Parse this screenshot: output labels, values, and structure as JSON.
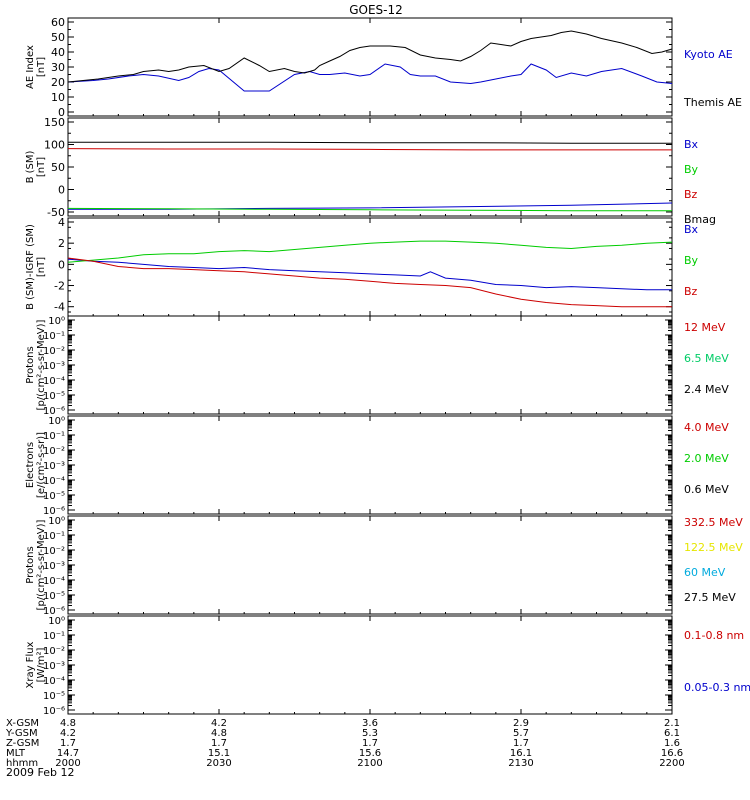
{
  "title": "GOES-12",
  "date_label": "2009 Feb 12",
  "chart_data": [
    {
      "type": "line",
      "ylabel": [
        "AE Index",
        "[nT]"
      ],
      "ylim": [
        0,
        60
      ],
      "yticks": [
        0,
        10,
        20,
        30,
        40,
        50,
        60
      ],
      "yscale": "linear",
      "xlim": [
        0,
        120
      ],
      "series": [
        {
          "name": "Kyoto AE",
          "color": "#0000cc",
          "x": [
            0,
            5,
            8,
            12,
            15,
            18,
            22,
            24,
            26,
            28,
            30,
            35,
            40,
            45,
            48,
            50,
            52,
            55,
            58,
            60,
            63,
            66,
            68,
            70,
            73,
            76,
            80,
            82,
            85,
            88,
            90,
            92,
            95,
            97,
            100,
            103,
            106,
            110,
            114,
            117,
            120
          ],
          "y": [
            20,
            21,
            22,
            24,
            25,
            24,
            21,
            23,
            27,
            29,
            28,
            14,
            14,
            25,
            27,
            25,
            25,
            26,
            24,
            25,
            32,
            30,
            25,
            24,
            24,
            20,
            19,
            20,
            22,
            24,
            25,
            32,
            28,
            23,
            26,
            24,
            27,
            29,
            24,
            20,
            19
          ]
        },
        {
          "name": "Themis AE",
          "color": "#000000",
          "x": [
            0,
            3,
            6,
            10,
            13,
            15,
            18,
            20,
            22,
            24,
            27,
            30,
            32,
            35,
            38,
            40,
            43,
            45,
            47,
            49,
            50,
            52,
            54,
            56,
            58,
            60,
            64,
            67,
            70,
            73,
            76,
            78,
            80,
            82,
            84,
            86,
            88,
            90,
            92,
            94,
            96,
            98,
            100,
            103,
            106,
            110,
            113,
            116,
            118,
            120
          ],
          "y": [
            20,
            21,
            22,
            24,
            25,
            27,
            28,
            27,
            28,
            30,
            31,
            27,
            29,
            36,
            31,
            27,
            29,
            27,
            26,
            28,
            31,
            34,
            37,
            41,
            43,
            44,
            44,
            43,
            38,
            36,
            35,
            34,
            37,
            41,
            46,
            45,
            44,
            47,
            49,
            50,
            51,
            53,
            54,
            52,
            49,
            46,
            43,
            39,
            40,
            42
          ]
        }
      ]
    },
    {
      "type": "line",
      "ylabel": [
        "B (SM)",
        "[nT]"
      ],
      "ylim": [
        -50,
        150
      ],
      "yticks": [
        -50,
        0,
        50,
        100,
        150
      ],
      "yscale": "linear",
      "xlim": [
        0,
        120
      ],
      "series": [
        {
          "name": "Bx",
          "color": "#0000cc",
          "x": [
            0,
            20,
            40,
            60,
            80,
            100,
            120
          ],
          "y": [
            -44,
            -44,
            -42,
            -41,
            -38,
            -35,
            -30
          ]
        },
        {
          "name": "By",
          "color": "#00cc00",
          "x": [
            0,
            20,
            40,
            60,
            80,
            100,
            120
          ],
          "y": [
            -42,
            -43,
            -44,
            -45,
            -46,
            -47,
            -47
          ]
        },
        {
          "name": "Bz",
          "color": "#cc0000",
          "x": [
            0,
            20,
            40,
            60,
            80,
            100,
            120
          ],
          "y": [
            91,
            90,
            90,
            89,
            88,
            88,
            88
          ]
        },
        {
          "name": "Bmag",
          "color": "#000000",
          "x": [
            0,
            20,
            40,
            60,
            80,
            100,
            120
          ],
          "y": [
            105,
            105,
            105,
            104,
            104,
            103,
            103
          ]
        }
      ]
    },
    {
      "type": "line",
      "ylabel": [
        "B (SM)-IGRF (SM)",
        "[nT]"
      ],
      "ylim": [
        -4.5,
        4
      ],
      "yticks": [
        -4,
        -2,
        0,
        2,
        4
      ],
      "yscale": "linear",
      "xlim": [
        0,
        120
      ],
      "series": [
        {
          "name": "Bx",
          "color": "#0000cc",
          "x": [
            0,
            5,
            10,
            15,
            20,
            25,
            30,
            35,
            40,
            45,
            50,
            55,
            60,
            65,
            70,
            72,
            75,
            80,
            85,
            90,
            95,
            100,
            105,
            110,
            115,
            120
          ],
          "y": [
            0.5,
            0.3,
            0.2,
            0,
            -0.2,
            -0.3,
            -0.4,
            -0.3,
            -0.5,
            -0.6,
            -0.7,
            -0.8,
            -0.9,
            -1.0,
            -1.1,
            -0.7,
            -1.3,
            -1.5,
            -1.9,
            -2.0,
            -2.2,
            -2.1,
            -2.2,
            -2.3,
            -2.4,
            -2.4
          ]
        },
        {
          "name": "By",
          "color": "#00cc00",
          "x": [
            0,
            5,
            10,
            15,
            20,
            25,
            30,
            35,
            40,
            45,
            50,
            55,
            60,
            65,
            70,
            75,
            80,
            85,
            90,
            95,
            100,
            105,
            110,
            115,
            120
          ],
          "y": [
            0.2,
            0.4,
            0.6,
            0.9,
            1.0,
            1.0,
            1.2,
            1.3,
            1.2,
            1.4,
            1.6,
            1.8,
            2.0,
            2.1,
            2.2,
            2.2,
            2.1,
            2.0,
            1.8,
            1.6,
            1.5,
            1.7,
            1.8,
            2.0,
            2.1
          ]
        },
        {
          "name": "Bz",
          "color": "#cc0000",
          "x": [
            0,
            5,
            10,
            15,
            20,
            25,
            30,
            35,
            40,
            45,
            50,
            55,
            60,
            65,
            70,
            75,
            80,
            85,
            90,
            95,
            100,
            105,
            110,
            115,
            120
          ],
          "y": [
            0.6,
            0.3,
            -0.2,
            -0.4,
            -0.4,
            -0.5,
            -0.6,
            -0.7,
            -0.9,
            -1.1,
            -1.3,
            -1.4,
            -1.6,
            -1.8,
            -1.9,
            -2.0,
            -2.2,
            -2.8,
            -3.3,
            -3.6,
            -3.8,
            -3.9,
            -4.0,
            -4.0,
            -4.0
          ]
        }
      ]
    },
    {
      "type": "line",
      "ylabel": [
        "Protons",
        "[p/(cm²-s-sr-MeV)]"
      ],
      "yscale": "log",
      "ylim": [
        -6,
        0
      ],
      "yticks": [
        "10⁰",
        "10⁻¹",
        "10⁻²",
        "10⁻³",
        "10⁻⁴",
        "10⁻⁵",
        "10⁻⁶"
      ],
      "xlim": [
        0,
        120
      ],
      "series": [
        {
          "name": "12 MeV",
          "color": "#cc0000"
        },
        {
          "name": "6.5 MeV",
          "color": "#00cc66"
        },
        {
          "name": "2.4 MeV",
          "color": "#000000"
        }
      ]
    },
    {
      "type": "line",
      "ylabel": [
        "Electrons",
        "[e/(cm²-s-sr)]"
      ],
      "yscale": "log",
      "ylim": [
        -6,
        0
      ],
      "yticks": [
        "10⁰",
        "10⁻¹",
        "10⁻²",
        "10⁻³",
        "10⁻⁴",
        "10⁻⁵",
        "10⁻⁶"
      ],
      "xlim": [
        0,
        120
      ],
      "series": [
        {
          "name": "4.0 MeV",
          "color": "#cc0000"
        },
        {
          "name": "2.0 MeV",
          "color": "#00cc00"
        },
        {
          "name": "0.6 MeV",
          "color": "#000000"
        }
      ]
    },
    {
      "type": "line",
      "ylabel": [
        "Protons",
        "[p/(cm²-s-sr-MeV)]"
      ],
      "yscale": "log",
      "ylim": [
        -6,
        0
      ],
      "yticks": [
        "10⁰",
        "10⁻¹",
        "10⁻²",
        "10⁻³",
        "10⁻⁴",
        "10⁻⁵",
        "10⁻⁶"
      ],
      "xlim": [
        0,
        120
      ],
      "series": [
        {
          "name": "332.5 MeV",
          "color": "#cc0000"
        },
        {
          "name": "122.5 MeV",
          "color": "#e6e600"
        },
        {
          "name": "60 MeV",
          "color": "#00aadd"
        },
        {
          "name": "27.5 MeV",
          "color": "#000000"
        }
      ]
    },
    {
      "type": "line",
      "ylabel": [
        "Xray Flux",
        "[W/m²]"
      ],
      "yscale": "log",
      "ylim": [
        -6,
        0
      ],
      "yticks": [
        "10⁰",
        "10⁻¹",
        "10⁻²",
        "10⁻³",
        "10⁻⁴",
        "10⁻⁵",
        "10⁻⁶"
      ],
      "xlim": [
        0,
        120
      ],
      "series": [
        {
          "name": "0.1-0.8 nm",
          "color": "#cc0000"
        },
        {
          "name": "0.05-0.3 nm",
          "color": "#0000cc"
        }
      ]
    }
  ],
  "ephemeris": {
    "x_positions": [
      0,
      30,
      60,
      90,
      120
    ],
    "rows": [
      {
        "label": "X-GSM",
        "values": [
          "4.8",
          "4.2",
          "3.6",
          "2.9",
          "2.1"
        ]
      },
      {
        "label": "Y-GSM",
        "values": [
          "4.2",
          "4.8",
          "5.3",
          "5.7",
          "6.1"
        ]
      },
      {
        "label": "Z-GSM",
        "values": [
          "1.7",
          "1.7",
          "1.7",
          "1.7",
          "1.6"
        ]
      },
      {
        "label": "MLT",
        "values": [
          "14.7",
          "15.1",
          "15.6",
          "16.1",
          "16.6"
        ]
      },
      {
        "label": "hhmm",
        "values": [
          "2000",
          "2030",
          "2100",
          "2130",
          "2200"
        ]
      }
    ]
  }
}
